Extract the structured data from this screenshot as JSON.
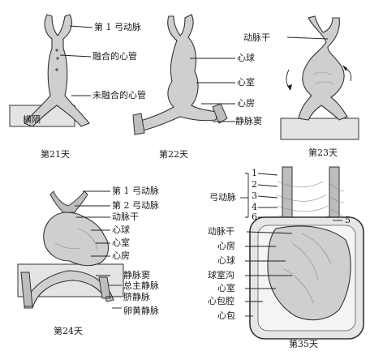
{
  "panels": {
    "day21": {
      "caption": "第21天",
      "labels": {
        "first_arch": "第 1 弓动脉",
        "fused_tube": "融合的心管",
        "unfused_tube": "未融合的心管",
        "septum": "横隔"
      }
    },
    "day22": {
      "caption": "第22天",
      "labels": {
        "bulbus": "心球",
        "ventricle": "心室",
        "atrium": "心房",
        "sinus": "静脉窦"
      }
    },
    "day23": {
      "caption": "第23天",
      "labels": {
        "truncus": "动脉干"
      }
    },
    "day24": {
      "caption": "第24天",
      "labels": {
        "first_arch": "第 1 弓动脉",
        "second_arch": "第 2 弓动脉",
        "truncus": "动脉干",
        "bulbus": "心球",
        "ventricle": "心室",
        "atrium": "心房",
        "sinus": "静脉窦",
        "common_cardinal": "总主静脉",
        "umbilical": "脐静脉",
        "vitelline": "卵黄静脉"
      }
    },
    "day35": {
      "caption": "第35天",
      "labels": {
        "arches_group": "弓动脉",
        "truncus": "动脉干",
        "atrium": "心房",
        "bulbus": "心球",
        "bulboventricular_sulcus": "球室沟",
        "ventricle": "心室",
        "pericardial_cavity": "心包腔",
        "pericardium": "心包"
      },
      "arch_numbers": [
        "1",
        "2",
        "3",
        "4",
        "6",
        "5"
      ]
    }
  }
}
